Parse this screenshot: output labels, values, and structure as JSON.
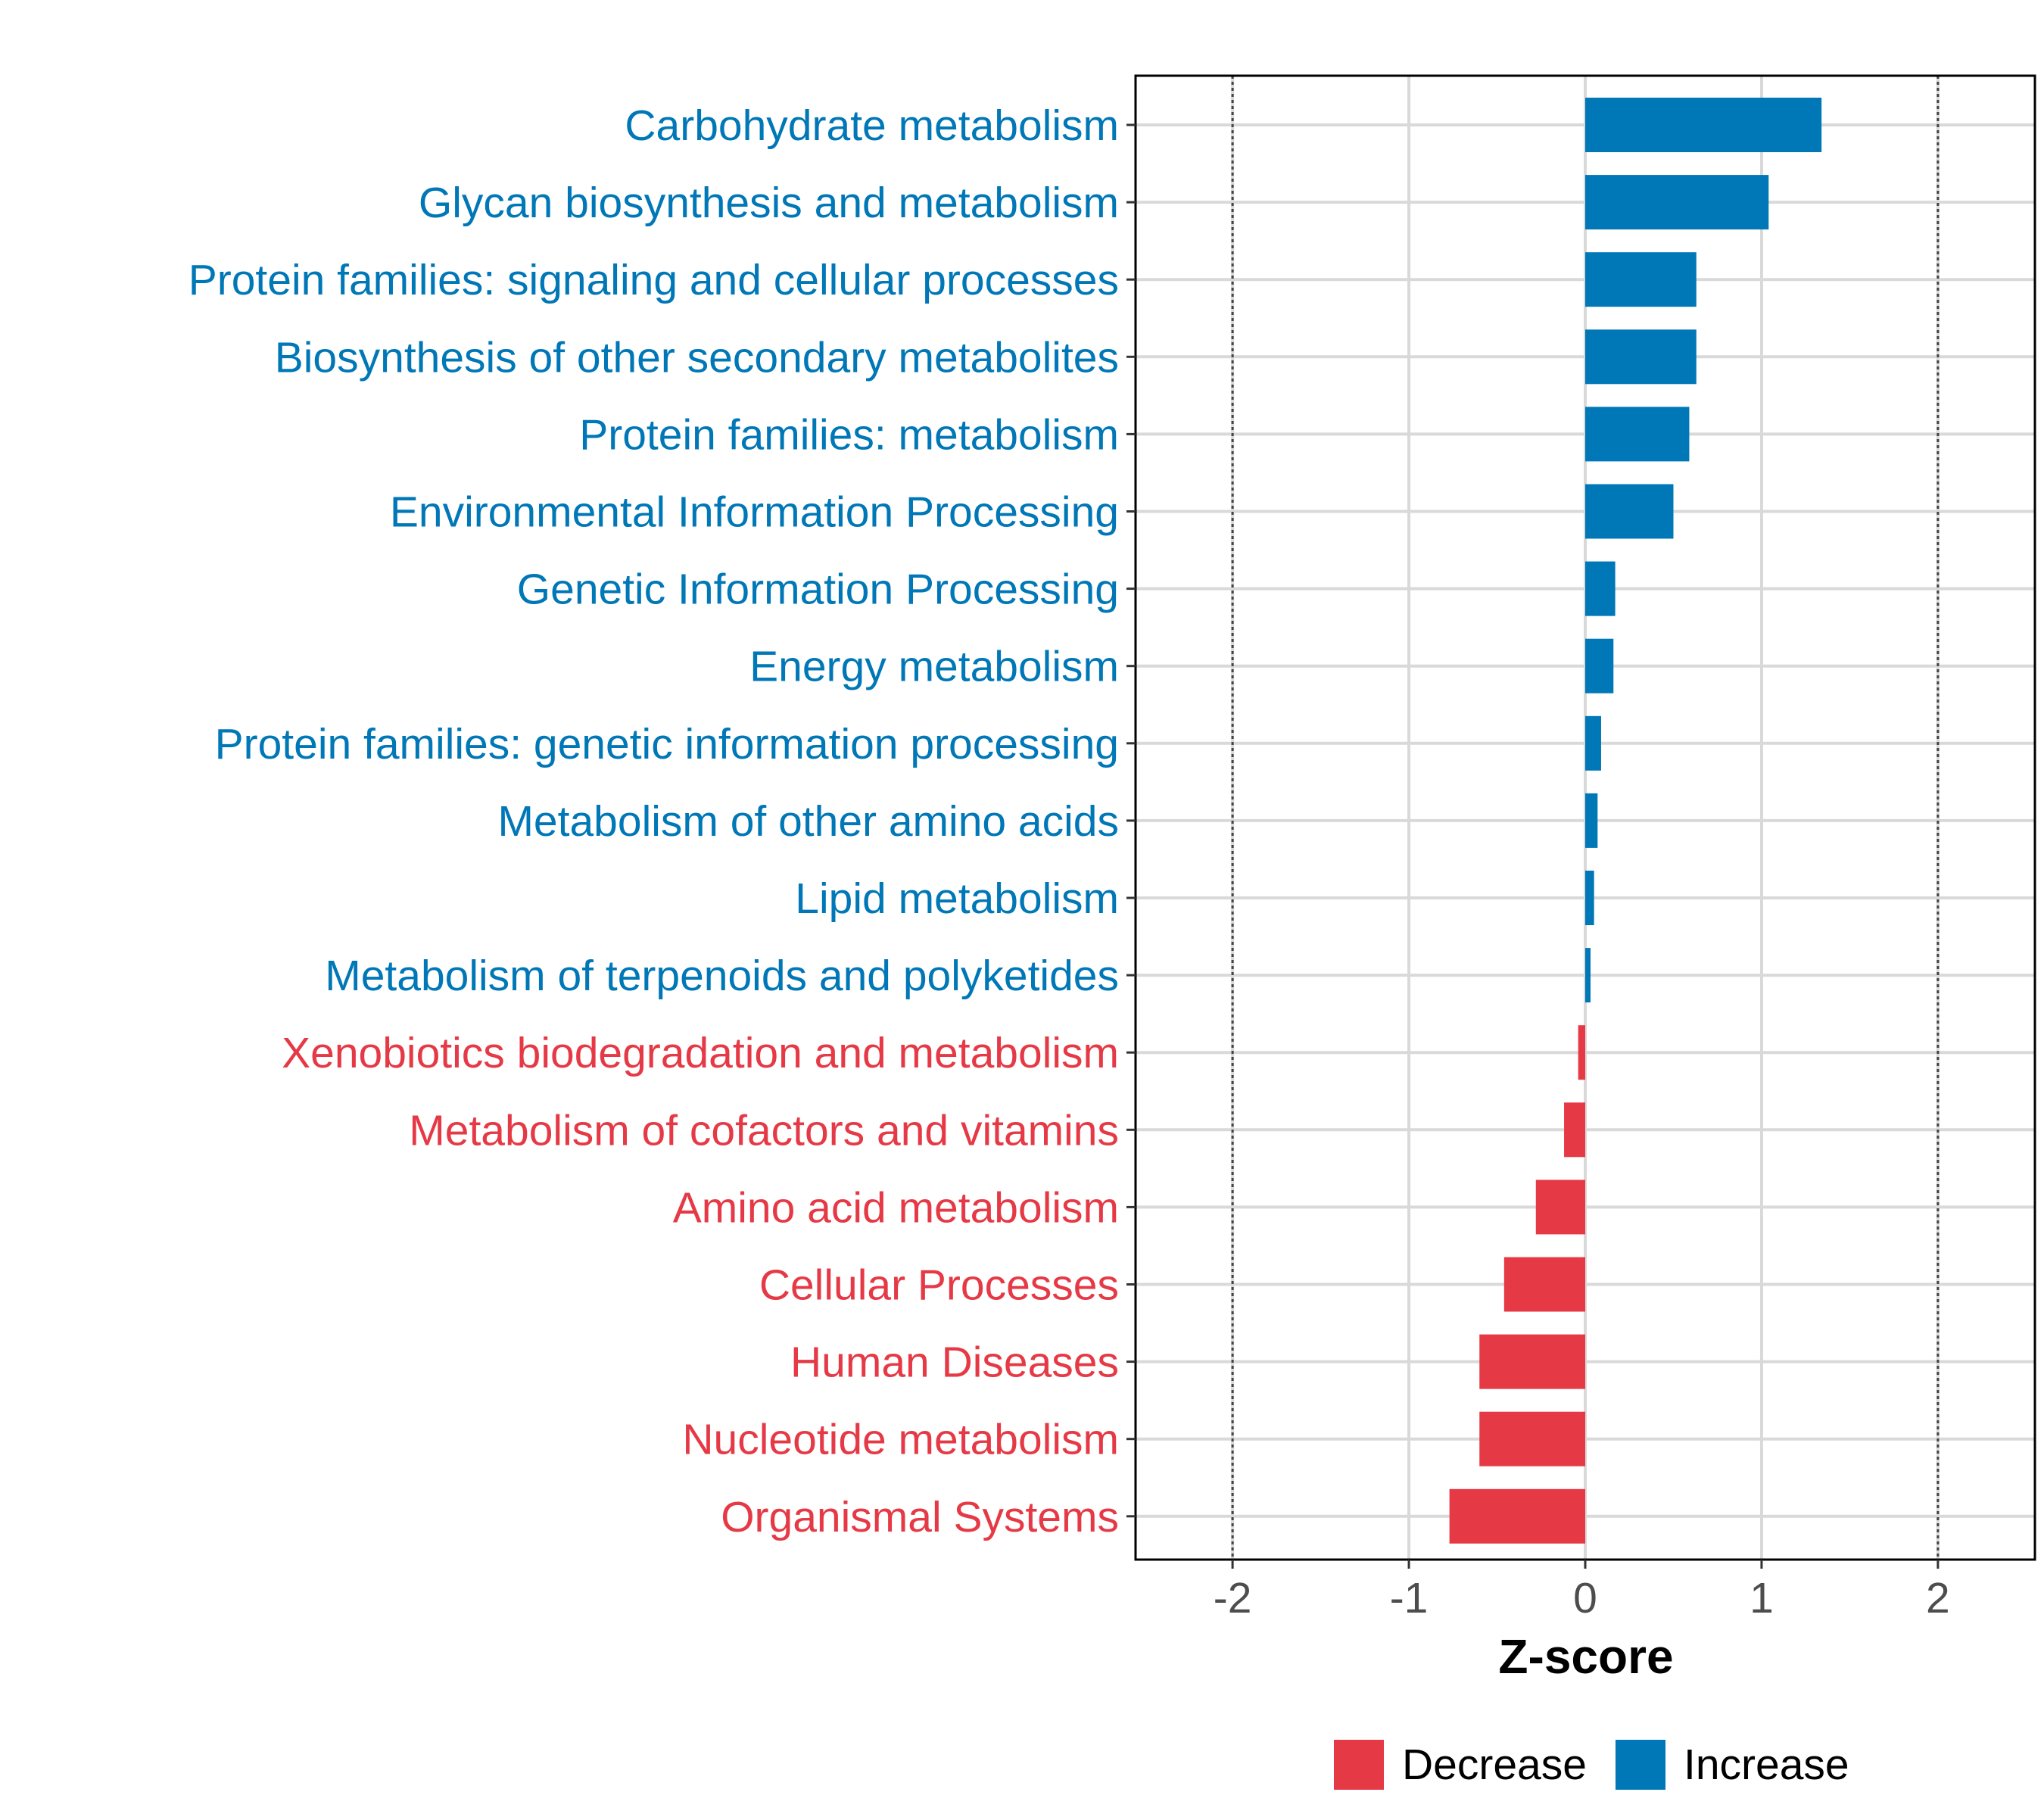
{
  "chart_data": {
    "type": "bar",
    "orientation": "horizontal",
    "title": "",
    "xlabel": "Z-score",
    "ylabel": "",
    "xlim": [
      -2.55,
      2.55
    ],
    "x_ticks": [
      -2,
      -1,
      0,
      1,
      2
    ],
    "x_tick_labels": [
      "-2",
      "-1",
      "0",
      "1",
      "2"
    ],
    "reference_lines": [
      -2,
      2
    ],
    "grid": true,
    "legend_position": "bottom",
    "colors": {
      "Decrease": "#e63946",
      "Increase": "#0077b6"
    },
    "legend": [
      {
        "name": "Decrease",
        "color": "#e63946"
      },
      {
        "name": "Increase",
        "color": "#0077b6"
      }
    ],
    "categories": [
      "Carbohydrate metabolism",
      "Glycan biosynthesis and metabolism",
      "Protein families: signaling and cellular processes",
      "Biosynthesis of other secondary metabolites",
      "Protein families: metabolism",
      "Environmental Information Processing",
      "Genetic Information Processing",
      "Energy metabolism",
      "Protein families: genetic information processing",
      "Metabolism of other amino acids",
      "Lipid metabolism",
      "Metabolism of terpenoids and polyketides",
      "Xenobiotics biodegradation and metabolism",
      "Metabolism of cofactors and vitamins",
      "Amino acid metabolism",
      "Cellular Processes",
      "Human Diseases",
      "Nucleotide metabolism",
      "Organismal Systems"
    ],
    "values": [
      1.34,
      1.04,
      0.63,
      0.63,
      0.59,
      0.5,
      0.17,
      0.16,
      0.09,
      0.07,
      0.05,
      0.03,
      -0.04,
      -0.12,
      -0.28,
      -0.46,
      -0.6,
      -0.6,
      -0.77
    ],
    "groups": [
      "Increase",
      "Increase",
      "Increase",
      "Increase",
      "Increase",
      "Increase",
      "Increase",
      "Increase",
      "Increase",
      "Increase",
      "Increase",
      "Increase",
      "Decrease",
      "Decrease",
      "Decrease",
      "Decrease",
      "Decrease",
      "Decrease",
      "Decrease"
    ]
  }
}
